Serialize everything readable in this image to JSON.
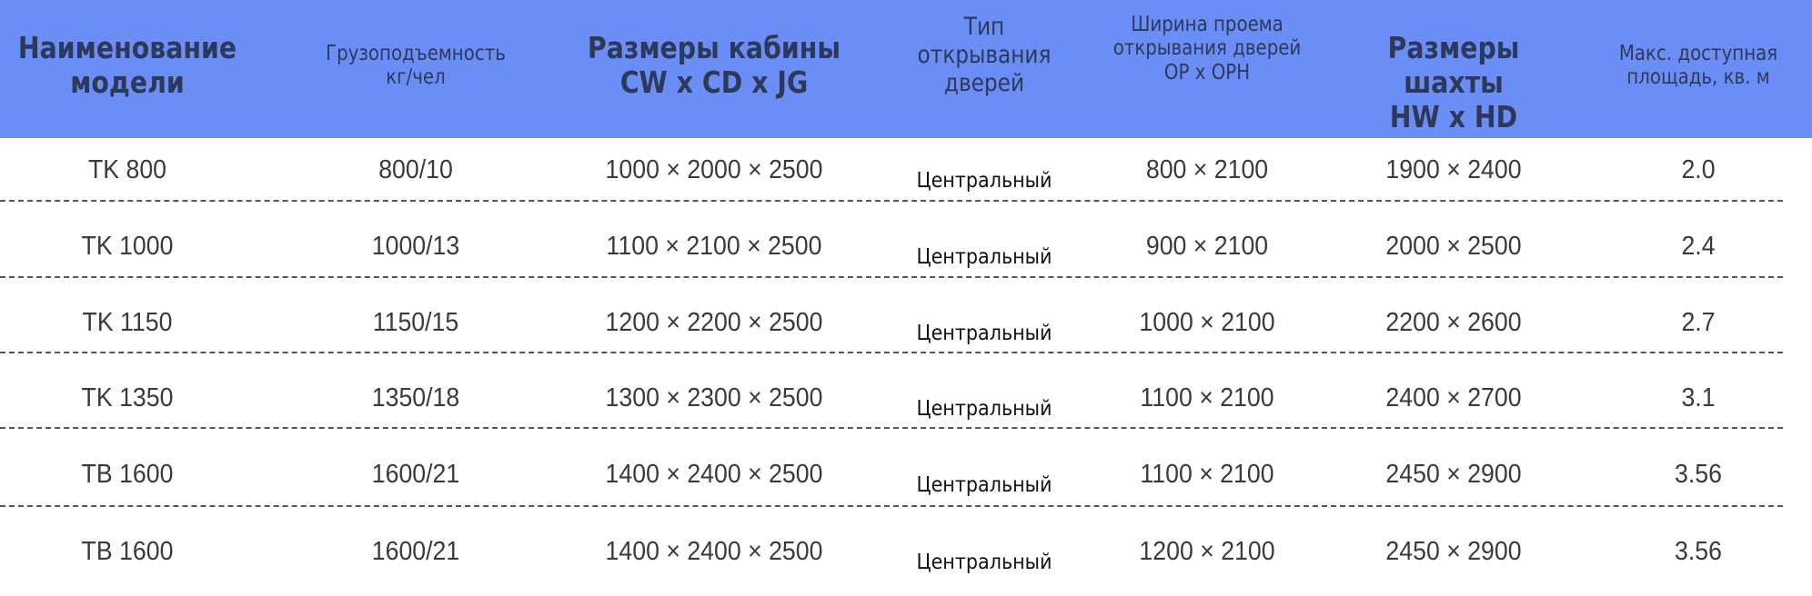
{
  "table": {
    "header_color": "#6a8ef6",
    "columns": [
      "Наименование модели",
      "Грузоподъемность кг/чел",
      "Размеры кабины CW x CD x JG",
      "Тип открывания дверей",
      "Ширина проема открывания дверей OP x OPH",
      "Размеры шахты HW x HD",
      "Макс. доступная площадь, кв. м"
    ],
    "column_lines": [
      [
        "Наименование",
        "модели"
      ],
      [
        "Грузоподъемность",
        "кг/чел"
      ],
      [
        "Размеры кабины",
        "CW x CD x JG"
      ],
      [
        "Тип",
        "открывания",
        "дверей"
      ],
      [
        "Ширина проема",
        "открывания дверей",
        "OP x OPH"
      ],
      [
        "Размеры шахты",
        "HW x HD"
      ],
      [
        "Макс. доступная",
        "площадь, кв. м"
      ]
    ],
    "rows": [
      [
        "TK 800",
        "800/10",
        "1000 × 2000 × 2500",
        "Центральный",
        "800 × 2100",
        "1900 × 2400",
        "2.0"
      ],
      [
        "TK 1000",
        "1000/13",
        "1100 × 2100 × 2500",
        "Центральный",
        "900 × 2100",
        "2000 × 2500",
        "2.4"
      ],
      [
        "TK 1150",
        "1150/15",
        "1200 × 2200 × 2500",
        "Центральный",
        "1000 × 2100",
        "2200 × 2600",
        "2.7"
      ],
      [
        "TK 1350",
        "1350/18",
        "1300 × 2300 × 2500",
        "Центральный",
        "1100 × 2100",
        "2400 × 2700",
        "3.1"
      ],
      [
        "TB 1600",
        "1600/21",
        "1400 × 2400 × 2500",
        "Центральный",
        "1100 × 2100",
        "2450 × 2900",
        "3.56"
      ],
      [
        "TB 1600",
        "1600/21",
        "1400 × 2400 × 2500",
        "Центральный",
        "1200 × 2100",
        "2450 × 2900",
        "3.56"
      ]
    ]
  }
}
